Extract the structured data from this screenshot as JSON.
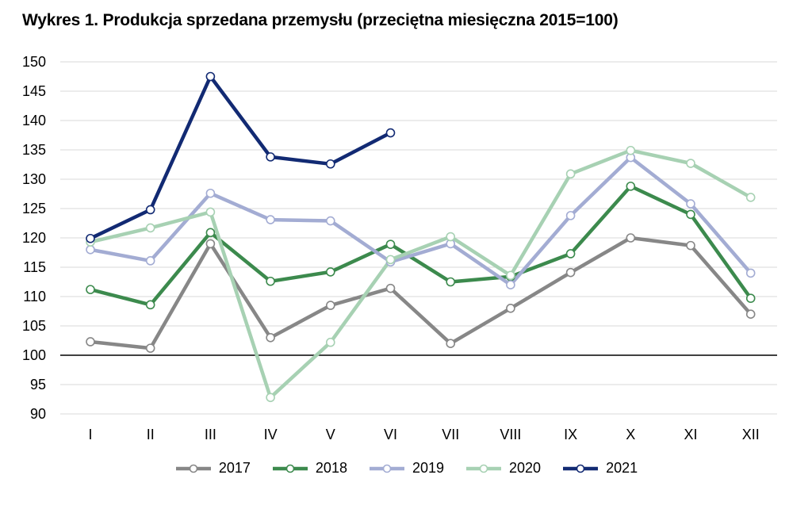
{
  "title": "Wykres 1. Produkcja sprzedana przemysłu (przeciętna miesięczna 2015=100)",
  "chart_data": {
    "type": "line",
    "categories": [
      "I",
      "II",
      "III",
      "IV",
      "V",
      "VI",
      "VII",
      "VIII",
      "IX",
      "X",
      "XI",
      "XII"
    ],
    "ylim": [
      90,
      150
    ],
    "yticks": [
      90,
      95,
      100,
      105,
      110,
      115,
      120,
      125,
      130,
      135,
      140,
      145,
      150
    ],
    "reference_line": 100,
    "grid": true,
    "legend_position": "bottom",
    "series": [
      {
        "name": "2017",
        "color": "#878787",
        "values": [
          102.3,
          101.2,
          119.0,
          103.0,
          108.5,
          111.4,
          102.0,
          108.0,
          114.1,
          120.0,
          118.7,
          107.0
        ]
      },
      {
        "name": "2018",
        "color": "#3c8a4d",
        "values": [
          111.2,
          108.6,
          120.9,
          112.6,
          114.2,
          118.9,
          112.5,
          113.4,
          117.3,
          128.8,
          124.0,
          109.7
        ]
      },
      {
        "name": "2019",
        "color": "#a3acd3",
        "values": [
          118.0,
          116.1,
          127.6,
          123.1,
          122.9,
          115.9,
          119.0,
          112.0,
          123.8,
          133.7,
          125.8,
          114.0
        ]
      },
      {
        "name": "2020",
        "color": "#a7d1b3",
        "values": [
          119.3,
          121.7,
          124.4,
          92.8,
          102.2,
          116.3,
          120.2,
          113.6,
          130.9,
          134.9,
          132.7,
          126.9
        ]
      },
      {
        "name": "2021",
        "color": "#122a73",
        "values": [
          119.9,
          124.8,
          147.5,
          133.8,
          132.6,
          137.9,
          null,
          null,
          null,
          null,
          null,
          null
        ]
      }
    ]
  }
}
